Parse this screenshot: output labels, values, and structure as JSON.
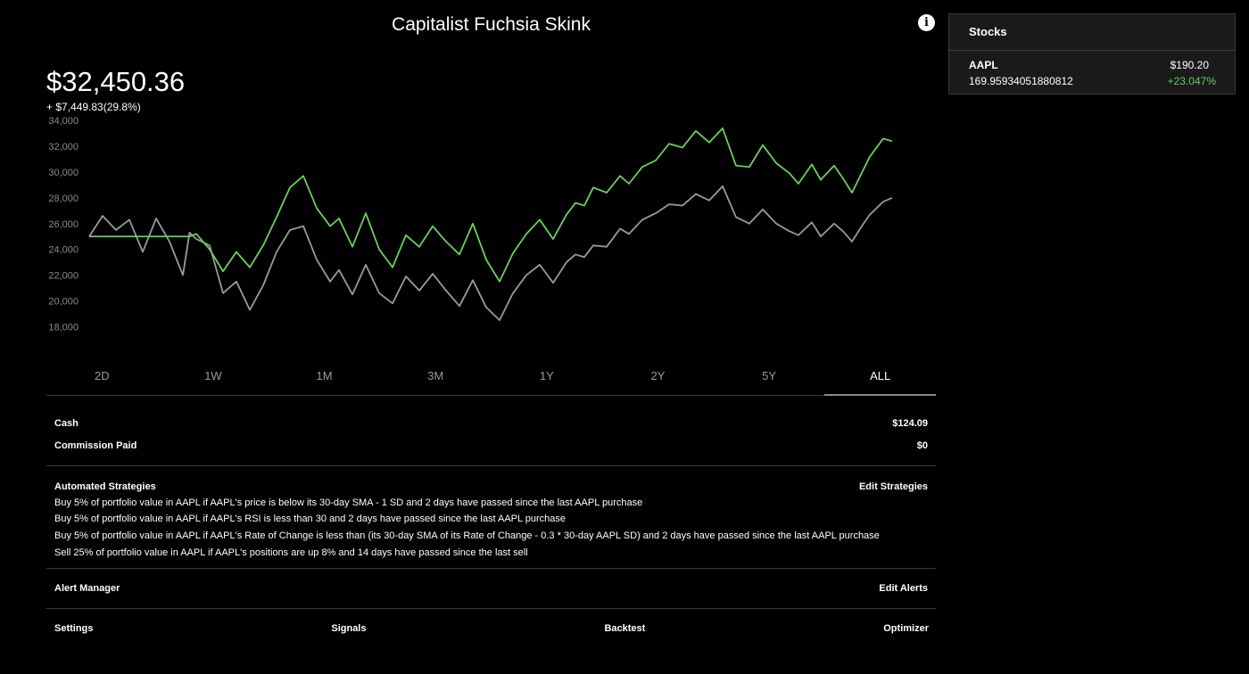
{
  "header": {
    "title": "Capitalist Fuchsia Skink",
    "info_icon": "info-icon"
  },
  "portfolio": {
    "value": "$32,450.36",
    "change": "+ $7,449.83(29.8%)"
  },
  "colors": {
    "portfolio_line": "#6ad15a",
    "benchmark_line": "#9a9a9a",
    "positive": "#66cc66"
  },
  "chart_data": {
    "type": "line",
    "title": "",
    "xlabel": "",
    "ylabel": "",
    "ylim": [
      16500,
      34500
    ],
    "y_ticks": [
      "34,000",
      "32,000",
      "30,000",
      "28,000",
      "26,000",
      "24,000",
      "22,000",
      "20,000",
      "18,000"
    ],
    "y_tick_values": [
      34000,
      32000,
      30000,
      28000,
      26000,
      24000,
      22000,
      20000,
      18000
    ],
    "grid": false,
    "legend": "none",
    "series": [
      {
        "color": "#6ad15a",
        "x": [
          0,
          6,
          12,
          18,
          24,
          30,
          36,
          42,
          45,
          48,
          54,
          60,
          66,
          72,
          78,
          84,
          90,
          96,
          102,
          108,
          112,
          118,
          124,
          130,
          136,
          142,
          148,
          154,
          160,
          166,
          172,
          178,
          184,
          190,
          196,
          202,
          208,
          214,
          218,
          222,
          226,
          232,
          238,
          242,
          248,
          254,
          260,
          266,
          272,
          278,
          284,
          290,
          296,
          302,
          308,
          314,
          318,
          324,
          328,
          334,
          338,
          342,
          346,
          350,
          356,
          360
        ],
        "values": [
          25000,
          25000,
          25000,
          25000,
          25000,
          25000,
          25000,
          25000,
          25000,
          25200,
          24000,
          22300,
          23800,
          22600,
          24300,
          26500,
          28800,
          29700,
          27200,
          25800,
          26400,
          24200,
          26800,
          24000,
          22600,
          25100,
          24200,
          25800,
          24600,
          23600,
          26000,
          23200,
          21500,
          23700,
          25200,
          26300,
          24800,
          26700,
          27600,
          27400,
          28800,
          28400,
          29700,
          29100,
          30400,
          30900,
          32200,
          31900,
          33200,
          32300,
          33400,
          30500,
          30400,
          32100,
          30700,
          29900,
          29100,
          30600,
          29400,
          30500,
          29500,
          28400,
          29800,
          31200,
          32600,
          32400
        ]
      },
      {
        "color": "#9a9a9a",
        "x": [
          0,
          6,
          12,
          18,
          24,
          30,
          36,
          42,
          45,
          48,
          54,
          60,
          66,
          72,
          78,
          84,
          90,
          96,
          102,
          108,
          112,
          118,
          124,
          130,
          136,
          142,
          148,
          154,
          160,
          166,
          172,
          178,
          184,
          190,
          196,
          202,
          208,
          214,
          218,
          222,
          226,
          232,
          238,
          242,
          248,
          254,
          260,
          266,
          272,
          278,
          284,
          290,
          296,
          302,
          308,
          314,
          318,
          324,
          328,
          334,
          338,
          342,
          346,
          350,
          356,
          360
        ],
        "values": [
          25000,
          26600,
          25500,
          26300,
          23800,
          26400,
          24600,
          22000,
          25300,
          24800,
          24300,
          20600,
          21500,
          19300,
          21200,
          23800,
          25500,
          25800,
          23200,
          21500,
          22400,
          20500,
          22800,
          20600,
          19800,
          21900,
          20800,
          22100,
          20800,
          19600,
          21600,
          19500,
          18500,
          20600,
          22000,
          22800,
          21400,
          23000,
          23600,
          23400,
          24300,
          24200,
          25600,
          25200,
          26300,
          26800,
          27500,
          27400,
          28300,
          27800,
          28900,
          26500,
          26000,
          27100,
          26000,
          25400,
          25100,
          26100,
          25000,
          26000,
          25400,
          24600,
          25700,
          26700,
          27700,
          28000
        ]
      }
    ]
  },
  "range_tabs": {
    "items": [
      "2D",
      "1W",
      "1M",
      "3M",
      "1Y",
      "2Y",
      "5Y",
      "ALL"
    ],
    "active": "ALL"
  },
  "account": {
    "cash_label": "Cash",
    "cash_value": "$124.09",
    "commission_label": "Commission Paid",
    "commission_value": "$0"
  },
  "strategies": {
    "label": "Automated Strategies",
    "edit_label": "Edit Strategies",
    "items": [
      "Buy 5% of portfolio value in AAPL if AAPL's price is below its 30-day SMA - 1 SD and 2 days have passed since the last AAPL purchase",
      "Buy 5% of portfolio value in AAPL if AAPL's RSI is less than 30 and 2 days have passed since the last AAPL purchase",
      "Buy 5% of portfolio value in AAPL if AAPL's Rate of Change is less than (its 30-day SMA of its Rate of Change - 0.3 * 30-day AAPL SD) and 2 days have passed since the last AAPL purchase",
      "Sell 25% of portfolio value in AAPL if AAPL's positions are up 8% and 14 days have passed since the last sell"
    ]
  },
  "alerts": {
    "label": "Alert Manager",
    "edit_label": "Edit Alerts"
  },
  "bottom_nav": {
    "settings": "Settings",
    "signals": "Signals",
    "backtest": "Backtest",
    "optimizer": "Optimizer"
  },
  "stocks_panel": {
    "title": "Stocks",
    "items": [
      {
        "symbol": "AAPL",
        "price": "$190.20",
        "shares": "169.95934051880812",
        "change": "+23.047%"
      }
    ]
  }
}
